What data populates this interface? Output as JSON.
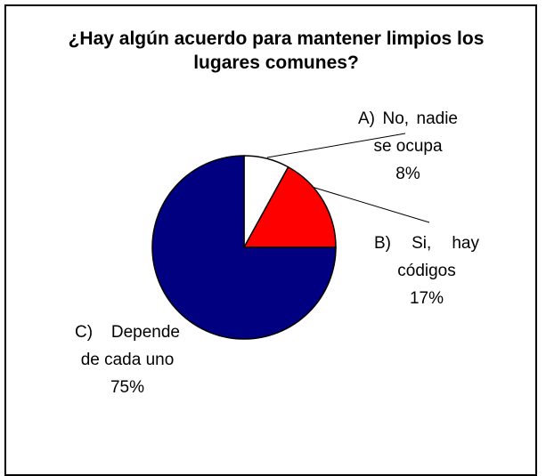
{
  "chart_data": {
    "type": "pie",
    "title": "¿Hay algún acuerdo para mantener limpios los lugares comunes?",
    "categories": [
      "A) No, nadie se ocupa",
      "B) Si, hay códigos",
      "C) Depende de cada uno"
    ],
    "values": [
      8,
      17,
      75
    ],
    "value_labels": [
      "8%",
      "17%",
      "75%"
    ],
    "colors": [
      "#ffffff",
      "#ff0000",
      "#000080"
    ]
  }
}
